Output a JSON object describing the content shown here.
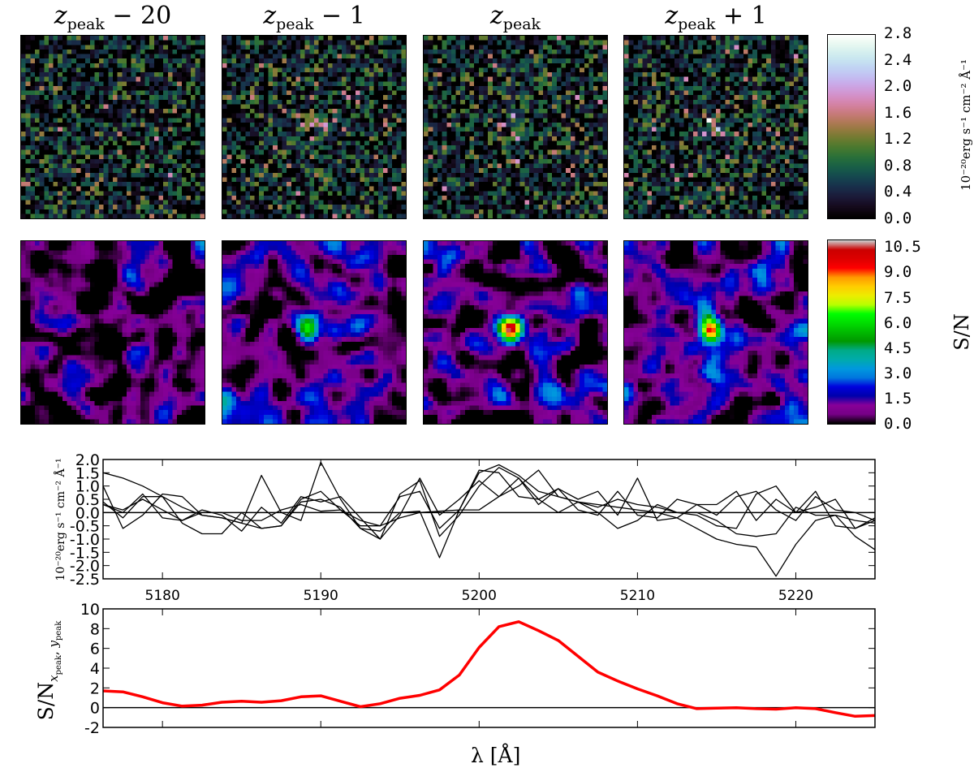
{
  "panel_titles": [
    {
      "var": "z",
      "sub": "peak",
      "rest": " − 20"
    },
    {
      "var": "z",
      "sub": "peak",
      "rest": " − 1"
    },
    {
      "var": "z",
      "sub": "peak",
      "rest": ""
    },
    {
      "var": "z",
      "sub": "peak",
      "rest": " + 1"
    }
  ],
  "colorbars": [
    {
      "colormap": "cubehelix",
      "range": [
        0.0,
        2.8
      ],
      "ticks": [
        "2.8",
        "2.4",
        "2.0",
        "1.6",
        "1.2",
        "0.8",
        "0.4",
        "0.0"
      ],
      "label": "10⁻²⁰erg s⁻¹ cm⁻² Å⁻¹"
    },
    {
      "colormap": "nipy_spectral",
      "range": [
        0.0,
        11.0
      ],
      "ticks": [
        "10.5",
        "9.0",
        "7.5",
        "6.0",
        "4.5",
        "3.0",
        "1.5",
        "0.0"
      ],
      "label": "S/N"
    }
  ],
  "chart_data": [
    {
      "type": "heatmap",
      "panels": [
        "z_peak − 20",
        "z_peak − 1",
        "z_peak",
        "z_peak + 1"
      ],
      "colormap": "cubehelix",
      "vrange": [
        0.0,
        2.8
      ]
    },
    {
      "type": "heatmap",
      "panels": [
        "z_peak − 20",
        "z_peak − 1",
        "z_peak",
        "z_peak + 1"
      ],
      "colormap": "nipy_spectral",
      "vrange": [
        0.0,
        11.0
      ],
      "peak_sn": [
        null,
        6,
        10,
        10
      ]
    },
    {
      "type": "line",
      "ylabel": "10⁻²⁰erg s⁻¹ cm⁻² Å⁻¹",
      "xlim": [
        5176.25,
        5225
      ],
      "ylim": [
        -2.5,
        2.0
      ],
      "xticks": [
        "5180",
        "5190",
        "5200",
        "5210",
        "5220"
      ],
      "yticks": [
        "2.0",
        "1.5",
        "1.0",
        "0.5",
        "0.0",
        "-0.5",
        "-1.0",
        "-1.5",
        "-2.0",
        "-2.5"
      ],
      "x_start": 5176.25,
      "x_step": 1.25,
      "hline": 0,
      "line_color": "#000000",
      "series": [
        {
          "values": [
            1.5,
            1.3,
            1.0,
            0.6,
            0.2,
            -0.1,
            -0.2,
            -0.4,
            -0.6,
            -0.5,
            0.4,
            0.5,
            0.2,
            -0.6,
            -0.7,
            0.0,
            0.05,
            -1.7,
            0.1,
            1.5,
            1.8,
            1.4,
            0.8,
            0.6,
            0.4,
            0.3,
            0.2,
            0.1,
            0.0,
            -0.2,
            -0.6,
            -1.0,
            -1.2,
            -1.3,
            -2.4,
            -1.2,
            -0.3,
            -0.1,
            -0.3,
            -0.4
          ]
        },
        {
          "values": [
            1.0,
            -0.6,
            -0.1,
            0.7,
            0.6,
            -0.1,
            -0.2,
            -0.4,
            1.4,
            0.0,
            -0.3,
            1.9,
            0.5,
            -0.6,
            -1.0,
            0.7,
            1.2,
            -0.9,
            -0.1,
            1.0,
            1.7,
            1.3,
            0.5,
            0.9,
            0.5,
            0.8,
            -0.1,
            1.3,
            -0.3,
            -0.2,
            0.3,
            0.3,
            0.8,
            -0.3,
            0.5,
            0.0,
            0.2,
            0.5,
            -0.6,
            -0.2
          ]
        },
        {
          "values": [
            0.4,
            -0.2,
            0.6,
            0.6,
            -0.4,
            -0.8,
            -0.8,
            0.0,
            -0.6,
            -0.5,
            0.5,
            0.8,
            0.1,
            -0.5,
            -0.5,
            0.6,
            0.8,
            -0.6,
            0.1,
            1.6,
            1.5,
            0.6,
            0.5,
            0.0,
            0.4,
            0.0,
            -0.6,
            -0.3,
            0.3,
            0.0,
            -0.1,
            -0.5,
            -0.6,
            0.7,
            1.0,
            0.0,
            0.8,
            -0.5,
            -0.6,
            -0.3
          ]
        },
        {
          "values": [
            0.3,
            0.1,
            0.5,
            0.1,
            -0.3,
            0.1,
            -0.1,
            -0.7,
            0.2,
            -0.4,
            0.6,
            0.4,
            0.6,
            -0.2,
            -1.0,
            -0.1,
            1.3,
            -0.1,
            0.5,
            1.2,
            0.6,
            1.3,
            0.3,
            0.9,
            0.1,
            -0.1,
            0.8,
            -0.1,
            -0.2,
            0.5,
            0.3,
            -0.1,
            0.6,
            0.8,
            0.1,
            -0.3,
            0.6,
            0.1,
            0.0,
            -0.3
          ]
        },
        {
          "values": [
            0.3,
            0.0,
            0.7,
            -0.2,
            -0.3,
            0.0,
            0.0,
            -0.3,
            -0.3,
            0.1,
            0.3,
            0.05,
            0.1,
            -0.3,
            -0.5,
            -0.2,
            0.0,
            0.05,
            0.1,
            0.1,
            0.6,
            1.0,
            1.6,
            0.6,
            0.4,
            0.2,
            0.5,
            0.3,
            0.2,
            0.0,
            0.0,
            -0.3,
            -0.8,
            -0.9,
            -0.8,
            0.2,
            -0.1,
            -0.1,
            -0.9,
            -1.4
          ]
        }
      ]
    },
    {
      "type": "line",
      "ylabel_main": "S/N",
      "ylabel_sub": "x",
      "ylabel_sub_sub": "peak",
      "ylabel_sub2": "y",
      "xlabel": "λ [Å]",
      "xlim": [
        5176.25,
        5225
      ],
      "ylim": [
        -2,
        10
      ],
      "yticks": [
        "10",
        "8",
        "6",
        "4",
        "2",
        "0",
        "-2"
      ],
      "x_start": 5176.25,
      "x_step": 1.25,
      "hline": 0,
      "line_color": "#ff0000",
      "series": [
        {
          "values": [
            1.7,
            1.6,
            1.1,
            0.5,
            0.15,
            0.25,
            0.55,
            0.65,
            0.55,
            0.7,
            1.1,
            1.2,
            0.65,
            0.1,
            0.4,
            0.95,
            1.25,
            1.8,
            3.3,
            6.1,
            8.2,
            8.7,
            7.8,
            6.8,
            5.2,
            3.6,
            2.7,
            1.9,
            1.2,
            0.4,
            -0.1,
            -0.05,
            0.0,
            -0.1,
            -0.15,
            0.0,
            -0.1,
            -0.5,
            -0.87,
            -0.8
          ]
        }
      ]
    }
  ]
}
